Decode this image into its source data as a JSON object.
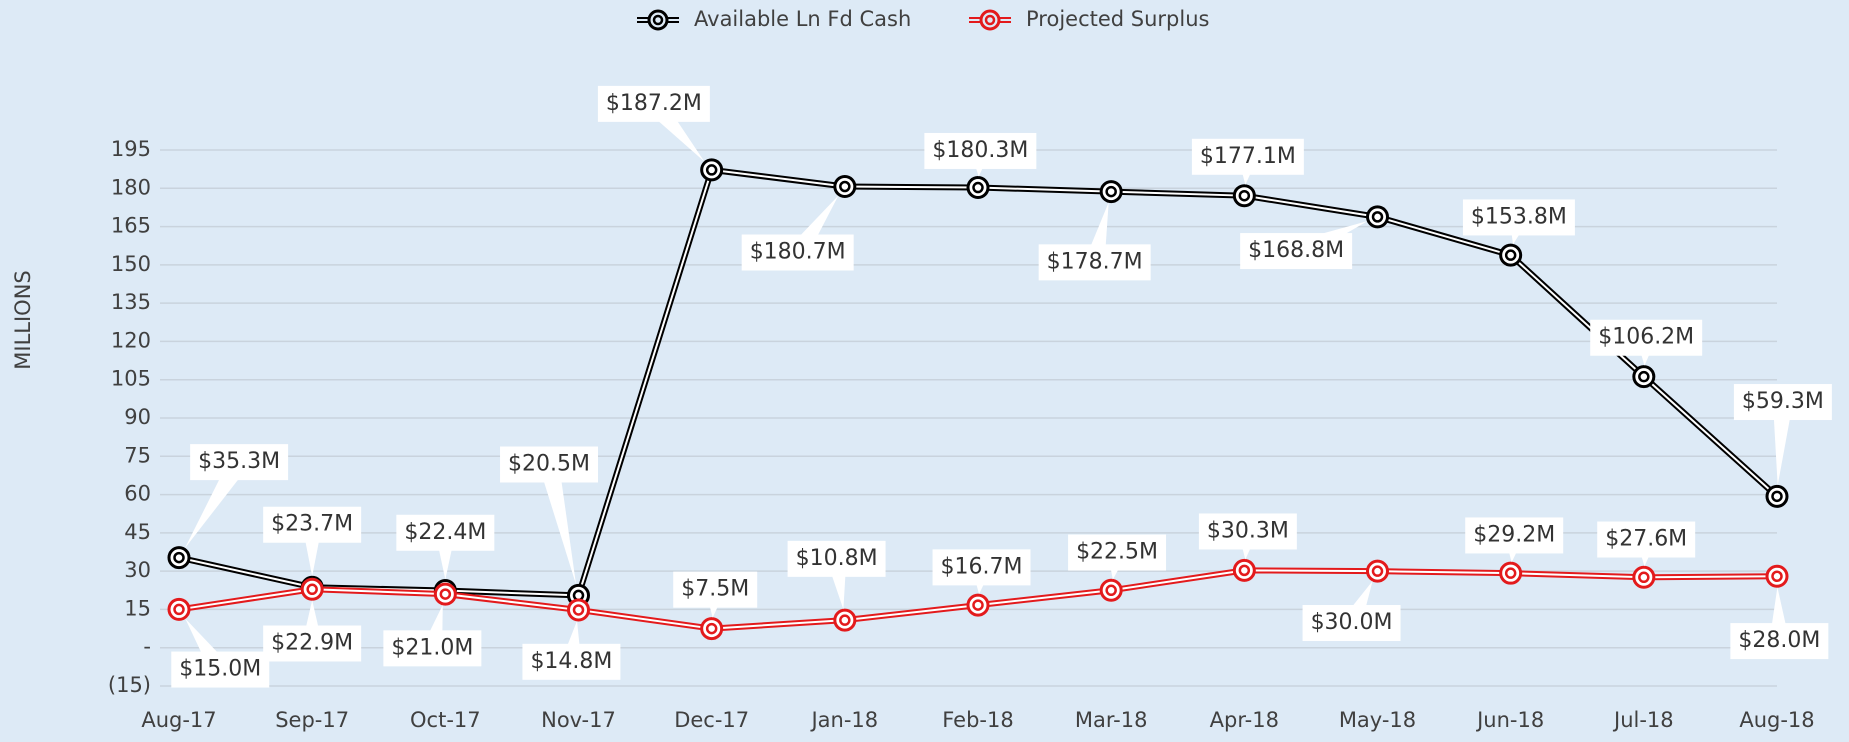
{
  "chart_data": {
    "type": "line",
    "y_label": "MILLIONS",
    "categories": [
      "Aug-17",
      "Sep-17",
      "Oct-17",
      "Nov-17",
      "Dec-17",
      "Jan-18",
      "Feb-18",
      "Mar-18",
      "Apr-18",
      "May-18",
      "Jun-18",
      "Jul-18",
      "Aug-18"
    ],
    "series": [
      {
        "name": "Available Ln Fd Cash",
        "color": "#000000",
        "values": [
          35.3,
          23.7,
          22.4,
          20.5,
          187.2,
          180.7,
          180.3,
          178.7,
          177.1,
          168.8,
          153.8,
          106.2,
          59.3
        ],
        "value_labels": [
          "$35.3M",
          "$23.7M",
          "$22.4M",
          "$20.5M",
          "$187.2M",
          "$180.7M",
          "$180.3M",
          "$178.7M",
          "$177.1M",
          "$168.8M",
          "$153.8M",
          "$106.2M",
          "$59.3M"
        ]
      },
      {
        "name": "Projected Surplus",
        "color": "#e31a1c",
        "values": [
          15.0,
          22.9,
          21.0,
          14.8,
          7.5,
          10.8,
          16.7,
          22.5,
          30.3,
          30.0,
          29.2,
          27.6,
          28.0
        ],
        "value_labels": [
          "$15.0M",
          "$22.9M",
          "$21.0M",
          "$14.8M",
          "$7.5M",
          "$10.8M",
          "$16.7M",
          "$22.5M",
          "$30.3M",
          "$30.0M",
          "$29.2M",
          "$27.6M",
          "$28.0M"
        ]
      }
    ],
    "ylim": [
      -15,
      195
    ],
    "yticks": [
      {
        "value": -15,
        "label": "(15)"
      },
      {
        "value": 0,
        "label": "-"
      },
      15,
      30,
      45,
      60,
      75,
      90,
      105,
      120,
      135,
      150,
      165,
      180,
      195
    ],
    "grid": true,
    "legend": "top"
  }
}
